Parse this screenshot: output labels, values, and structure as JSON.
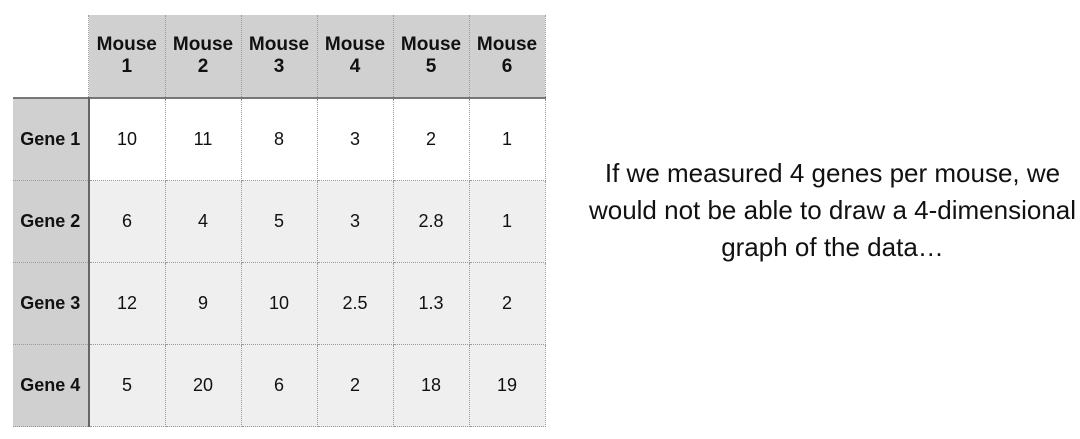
{
  "table": {
    "columns": [
      "Mouse 1",
      "Mouse 2",
      "Mouse 3",
      "Mouse 4",
      "Mouse 5",
      "Mouse 6"
    ],
    "rows": [
      {
        "label": "Gene 1",
        "values": [
          "10",
          "11",
          "8",
          "3",
          "2",
          "1"
        ]
      },
      {
        "label": "Gene 2",
        "values": [
          "6",
          "4",
          "5",
          "3",
          "2.8",
          "1"
        ]
      },
      {
        "label": "Gene 3",
        "values": [
          "12",
          "9",
          "10",
          "2.5",
          "1.3",
          "2"
        ]
      },
      {
        "label": "Gene 4",
        "values": [
          "5",
          "20",
          "6",
          "2",
          "18",
          "19"
        ]
      }
    ]
  },
  "note": "If we measured 4 genes per mouse, we would not be able to draw a 4-dimensional graph of the data…"
}
